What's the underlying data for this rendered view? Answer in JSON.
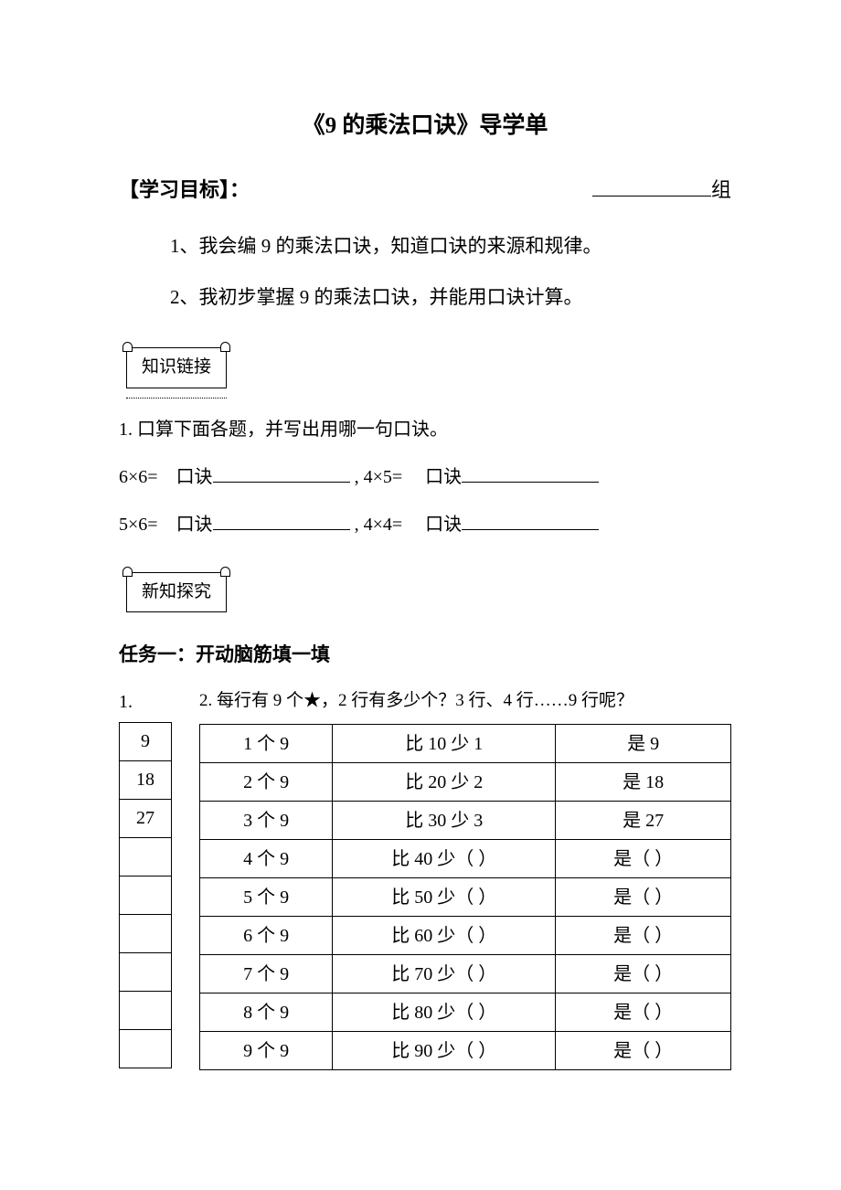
{
  "title": "《9 的乘法口诀》导学单",
  "goal": {
    "heading": "【学习目标】：",
    "group_suffix": "组",
    "items": [
      "1、我会编 9 的乘法口诀，知道口诀的来源和规律。",
      "2、我初步掌握 9 的乘法口诀，并能用口诀计算。"
    ]
  },
  "section1": {
    "label": "知识链接",
    "prompt": "1.  口算下面各题，并写出用哪一句口诀。",
    "rows": [
      {
        "a": "6×6=",
        "b": "口诀",
        "c": ", 4×5=",
        "d": "口诀"
      },
      {
        "a": "5×6=",
        "b": "口诀",
        "c": ", 4×4=",
        "d": "口诀"
      }
    ]
  },
  "section2": {
    "label": "新知探究",
    "task_heading": "任务一：开动脑筋填一填",
    "left_num": "1.",
    "q2": "2. 每行有 9 个★，2 行有多少个？3 行、4 行……9 行呢？",
    "small_table": [
      "9",
      "18",
      "27",
      "",
      "",
      "",
      "",
      "",
      ""
    ],
    "big_table": [
      [
        "1 个 9",
        "比 10 少 1",
        "是 9"
      ],
      [
        "2 个 9",
        "比 20 少 2",
        "是 18"
      ],
      [
        "3 个 9",
        "比 30 少 3",
        "是 27"
      ],
      [
        "4 个 9",
        "比 40 少（  ）",
        "是（  ）"
      ],
      [
        "5 个 9",
        "比 50 少（  ）",
        "是（  ）"
      ],
      [
        "6 个 9",
        "比 60 少（  ）",
        "是（  ）"
      ],
      [
        "7 个 9",
        "比 70 少（  ）",
        "是（  ）"
      ],
      [
        "8 个 9",
        "比 80 少（  ）",
        "是（  ）"
      ],
      [
        "9 个 9",
        "比 90 少（  ）",
        "是（  ）"
      ]
    ]
  }
}
